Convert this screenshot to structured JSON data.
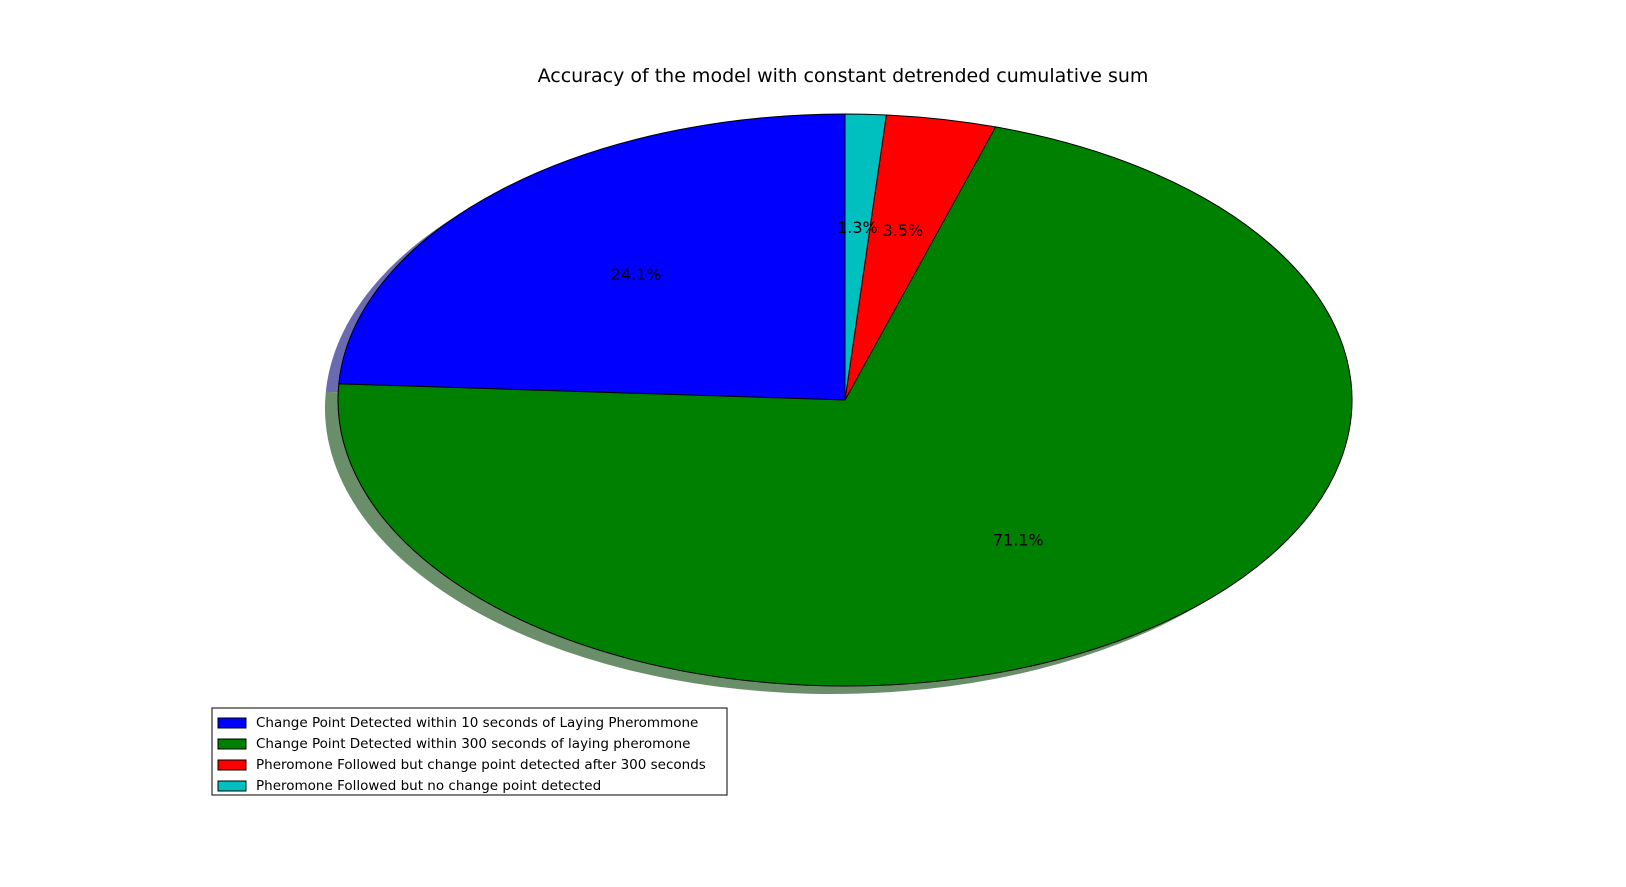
{
  "chart_data": {
    "type": "pie",
    "title": "Accuracy of the model with constant detrended cumulative sum",
    "start_angle_deg": 90,
    "direction": "counterclockwise",
    "shadow": true,
    "legend_position": "lower-left",
    "slices": [
      {
        "label": "Change Point Detected within 10 seconds of Laying Pherommone",
        "value": 24.1,
        "pct_label": "24.1%",
        "color": "#0000ff"
      },
      {
        "label": "Change Point Detected within 300 seconds of laying pheromone",
        "value": 71.1,
        "pct_label": "71.1%",
        "color": "#008000"
      },
      {
        "label": "Pheromone Followed but change point detected after 300 seconds",
        "value": 3.5,
        "pct_label": "3.5%",
        "color": "#ff0000"
      },
      {
        "label": "Pheromone Followed but no change point detected",
        "value": 1.3,
        "pct_label": "1.3%",
        "color": "#00bfbf"
      }
    ]
  }
}
